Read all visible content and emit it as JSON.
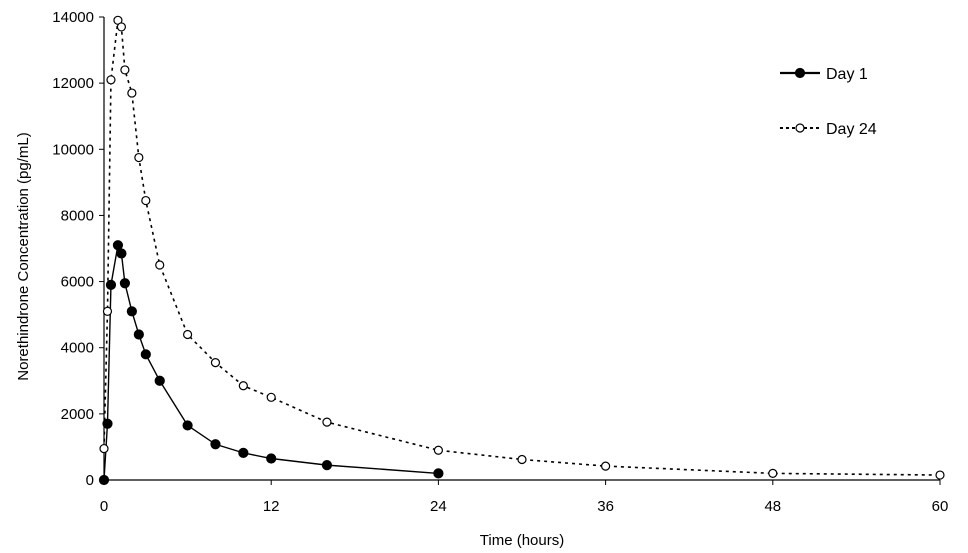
{
  "chart_data": {
    "type": "line",
    "xlabel": "Time (hours)",
    "ylabel": "Norethindrone Concentration (pg/mL)",
    "xlim": [
      0,
      60
    ],
    "ylim": [
      0,
      14000
    ],
    "x_ticks": [
      0,
      12,
      24,
      36,
      48,
      60
    ],
    "y_ticks": [
      0,
      2000,
      4000,
      6000,
      8000,
      10000,
      12000,
      14000
    ],
    "grid": false,
    "legend_position": "top-right",
    "series": [
      {
        "name": "Day 1",
        "line_style": "solid",
        "marker": "filled-circle",
        "color": "#000000",
        "x": [
          0,
          0.25,
          0.5,
          1,
          1.25,
          1.5,
          2,
          2.5,
          3,
          4,
          6,
          8,
          10,
          12,
          16,
          24
        ],
        "y": [
          0,
          1700,
          5900,
          7100,
          6850,
          5950,
          5100,
          4400,
          3800,
          3000,
          1650,
          1080,
          820,
          650,
          450,
          200
        ]
      },
      {
        "name": "Day 24",
        "line_style": "dotted",
        "marker": "open-circle",
        "color": "#000000",
        "x": [
          0,
          0.25,
          0.5,
          1,
          1.25,
          1.5,
          2,
          2.5,
          3,
          4,
          6,
          8,
          10,
          12,
          16,
          24,
          30,
          36,
          48,
          60
        ],
        "y": [
          950,
          5100,
          12100,
          13900,
          13700,
          12400,
          11700,
          9750,
          8450,
          6500,
          4400,
          3550,
          2850,
          2500,
          1750,
          900,
          620,
          420,
          200,
          150
        ]
      }
    ]
  }
}
